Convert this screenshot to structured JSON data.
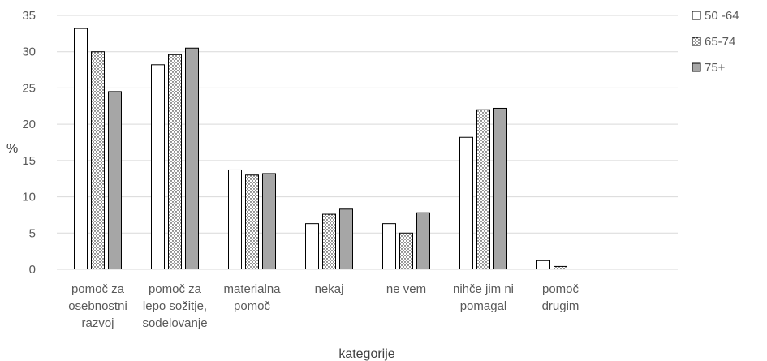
{
  "chart_data": {
    "type": "bar",
    "categories": [
      [
        "pomoč za",
        "osebnostni",
        "razvoj"
      ],
      [
        "pomoč za",
        "lepo sožitje,",
        "sodelovanje"
      ],
      [
        "materialna",
        "pomoč"
      ],
      [
        "nekaj"
      ],
      [
        "ne vem"
      ],
      [
        "nihče jim ni",
        "pomagal"
      ],
      [
        "pomoč",
        "drugim"
      ]
    ],
    "series": [
      {
        "name": "50 -64",
        "values": [
          33.2,
          28.2,
          13.7,
          6.3,
          6.3,
          18.2,
          1.2
        ],
        "fill": "white"
      },
      {
        "name": "65-74",
        "values": [
          30.0,
          29.6,
          13.0,
          7.6,
          5.0,
          22.0,
          0.4
        ],
        "fill": "dots"
      },
      {
        "name": "75+",
        "values": [
          24.5,
          30.5,
          13.2,
          8.3,
          7.8,
          22.2,
          0
        ],
        "fill": "#a6a6a6"
      }
    ],
    "ylim": [
      0,
      35
    ],
    "yticks": [
      0,
      5,
      10,
      15,
      20,
      25,
      30,
      35
    ],
    "ylabel": "%",
    "xlabel": "kategorije",
    "grid": true,
    "legend": "right"
  }
}
